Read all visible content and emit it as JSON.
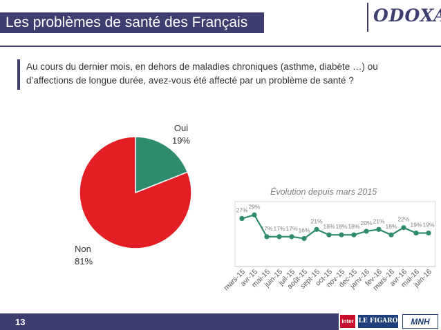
{
  "header": {
    "title": "Les problèmes de santé des Français",
    "logo_text": "ODOXA"
  },
  "question": "Au cours du dernier mois, en dehors de maladies chroniques (asthme, diabète …) ou d’affections de longue durée, avez-vous été affecté par un problème de santé ?",
  "footer": {
    "page_number": "13",
    "partners": [
      "inter",
      "LE FIGARO",
      "MNH"
    ]
  },
  "colors": {
    "brand": "#3d3d6f",
    "oui": "#2e8b6e",
    "non": "#e31e24",
    "line": "#2e8b6e"
  },
  "chart_data": [
    {
      "type": "pie",
      "labels": [
        "Oui",
        "Non"
      ],
      "values": [
        19,
        81
      ],
      "value_labels": [
        "19%",
        "81%"
      ],
      "colors": [
        "#2e8b6e",
        "#e31e24"
      ]
    },
    {
      "type": "line",
      "title": "Évolution depuis mars 2015",
      "categories": [
        "mars-15",
        "avr-15",
        "mai-15",
        "juin-15",
        "juil-15",
        "août-15",
        "sept-15",
        "oct-15",
        "nov-15",
        "dec-15",
        "janv-16",
        "fev-16",
        "mars-16",
        "avr-16",
        "mai-16",
        "juin-16"
      ],
      "values": [
        27,
        29,
        17,
        17,
        17,
        16,
        21,
        18,
        18,
        18,
        20,
        21,
        18,
        22,
        19,
        19
      ],
      "value_labels": [
        "27%",
        "29%",
        "17%",
        "17%",
        "17%",
        "16%",
        "21%",
        "18%",
        "18%",
        "18%",
        "20%",
        "21%",
        "18%",
        "22%",
        "19%",
        "19%"
      ],
      "color": "#2e8b6e"
    }
  ]
}
